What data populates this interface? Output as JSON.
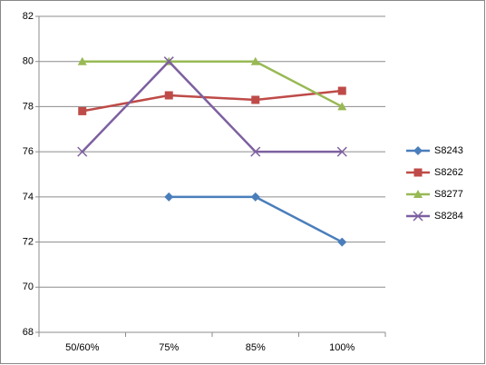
{
  "chart_data": {
    "type": "line",
    "categories": [
      "50/60%",
      "75%",
      "85%",
      "100%"
    ],
    "series": [
      {
        "name": "S8243",
        "color": "#4a7ebb",
        "marker": "diamond",
        "values": [
          null,
          74,
          74,
          72
        ]
      },
      {
        "name": "S8262",
        "color": "#be4b48",
        "marker": "square",
        "values": [
          77.8,
          78.5,
          78.3,
          78.7
        ]
      },
      {
        "name": "S8277",
        "color": "#98b954",
        "marker": "triangle",
        "values": [
          80,
          80,
          80,
          78
        ]
      },
      {
        "name": "S8284",
        "color": "#7d60a0",
        "marker": "x",
        "values": [
          76,
          80,
          76,
          76
        ]
      }
    ],
    "ylim": [
      68,
      82
    ],
    "yticks": [
      68,
      70,
      72,
      74,
      76,
      78,
      80,
      82
    ],
    "grid": true,
    "legend": "right"
  }
}
